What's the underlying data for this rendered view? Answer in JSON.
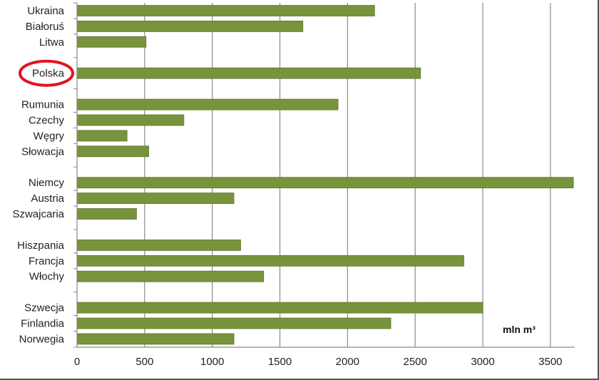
{
  "chart_data": {
    "type": "bar",
    "orientation": "horizontal",
    "categories": [
      "Ukraina",
      "Białoruś",
      "Litwa",
      "Polska",
      "Rumunia",
      "Czechy",
      "Węgry",
      "Słowacja",
      "Niemcy",
      "Austria",
      "Szwajcaria",
      "Hiszpania",
      "Francja",
      "Włochy",
      "Szwecja",
      "Finlandia",
      "Norwegia"
    ],
    "values": [
      2200,
      1670,
      510,
      2540,
      1930,
      790,
      370,
      530,
      3670,
      1160,
      440,
      1210,
      2860,
      1380,
      3000,
      2320,
      1160
    ],
    "groups": [
      [
        "Ukraina",
        "Białoruś",
        "Litwa"
      ],
      [
        "Polska"
      ],
      [
        "Rumunia",
        "Czechy",
        "Węgry",
        "Słowacja"
      ],
      [
        "Niemcy",
        "Austria",
        "Szwajcaria"
      ],
      [
        "Hiszpania",
        "Francja",
        "Włochy"
      ],
      [
        "Szwecja",
        "Finlandia",
        "Norwegia"
      ]
    ],
    "highlighted_category": "Polska",
    "unit_label": "mln m³",
    "x_ticks": [
      0,
      500,
      1000,
      1500,
      2000,
      2500,
      3000,
      3500
    ],
    "xlim": [
      0,
      3680
    ],
    "grid": "vertical",
    "legend": "none",
    "bar_color": "#77933c",
    "highlight_color": "#e0141e",
    "title": "",
    "xlabel": "",
    "ylabel": ""
  }
}
